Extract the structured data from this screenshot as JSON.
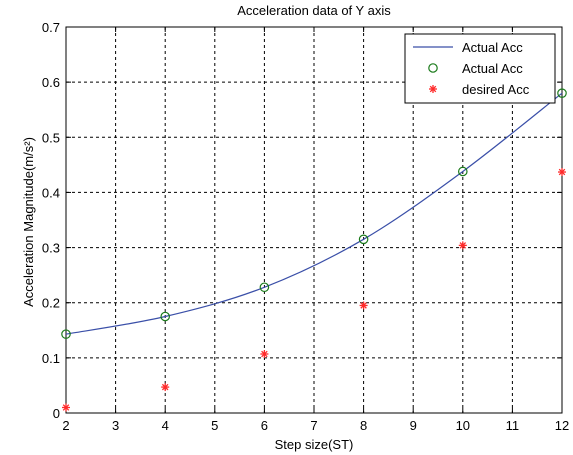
{
  "chart_data": {
    "type": "line",
    "title": "Acceleration data of Y axis",
    "xlabel": "Step size(ST)",
    "ylabel": "Acceleration Magnitude(m/s²)",
    "xlim": [
      2,
      12
    ],
    "ylim": [
      0,
      0.7
    ],
    "xticks": [
      "2",
      "3",
      "4",
      "5",
      "6",
      "7",
      "8",
      "9",
      "10",
      "11",
      "12"
    ],
    "yticks": [
      "0",
      "0.1",
      "0.2",
      "0.3",
      "0.4",
      "0.5",
      "0.6",
      "0.7"
    ],
    "grid": true,
    "legend_position": "top-right",
    "series": [
      {
        "name": "Actual Acc",
        "style": "line",
        "color": "#3a4fa8",
        "x": [
          2,
          4,
          6,
          8,
          10,
          12
        ],
        "y": [
          0.143,
          0.175,
          0.228,
          0.315,
          0.438,
          0.58
        ]
      },
      {
        "name": "Actual Acc",
        "style": "circle-markers",
        "color": "#1a7a1a",
        "x": [
          2,
          4,
          6,
          8,
          10,
          12
        ],
        "y": [
          0.143,
          0.175,
          0.228,
          0.315,
          0.438,
          0.58
        ]
      },
      {
        "name": "desired Acc",
        "style": "star-markers",
        "color": "#ff2a2a",
        "x": [
          2,
          4,
          6,
          8,
          10,
          12
        ],
        "y": [
          0.01,
          0.047,
          0.107,
          0.195,
          0.304,
          0.437
        ]
      }
    ]
  }
}
